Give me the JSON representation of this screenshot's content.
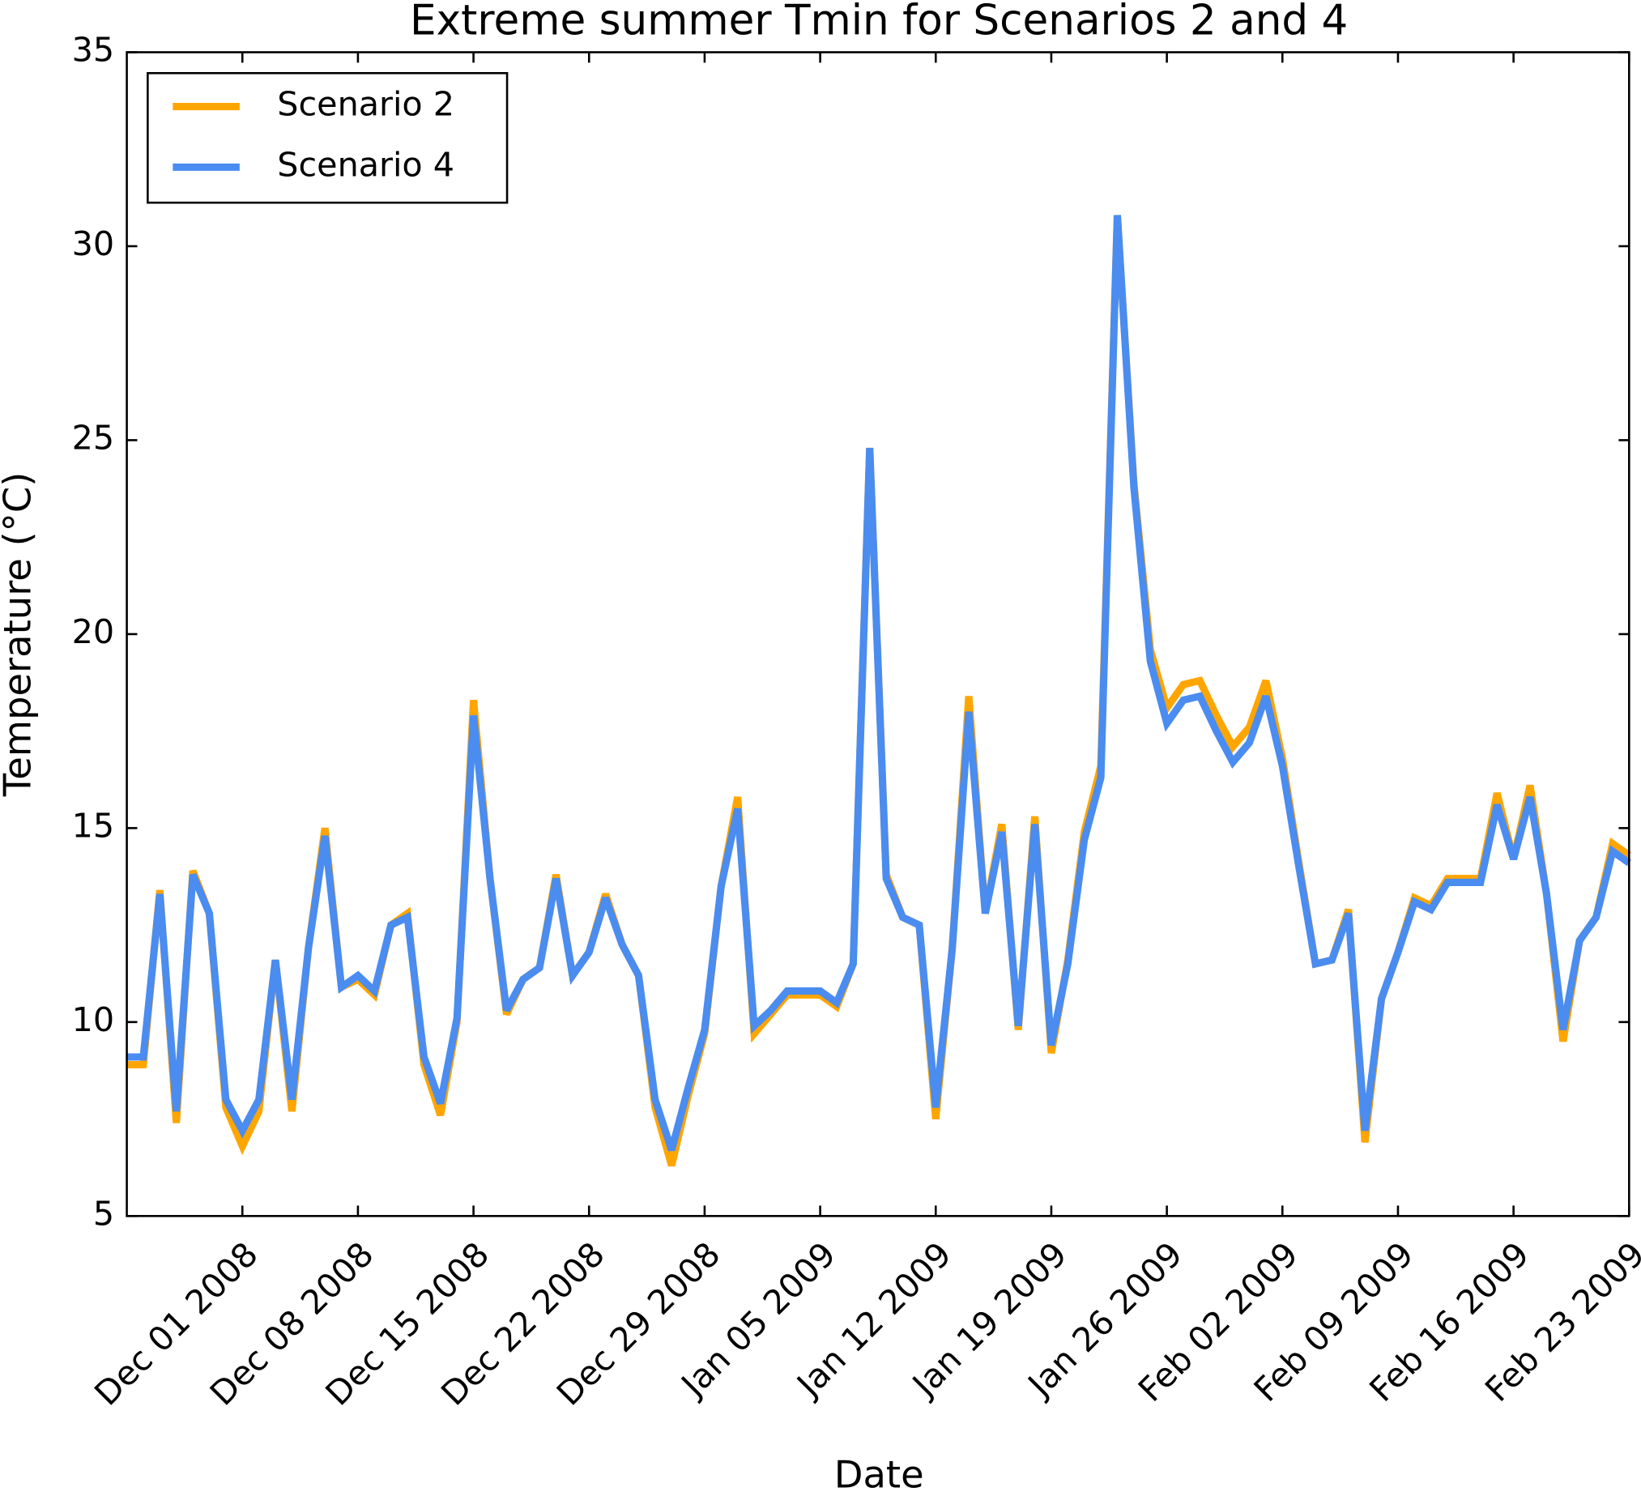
{
  "chart_data": {
    "type": "line",
    "title": "Extreme summer Tmin for Scenarios 2 and 4",
    "xlabel": "Date",
    "ylabel": "Temperature (°C)",
    "x": [
      "2008-11-24",
      "2008-11-25",
      "2008-11-26",
      "2008-11-27",
      "2008-11-28",
      "2008-11-29",
      "2008-11-30",
      "2008-12-01",
      "2008-12-02",
      "2008-12-03",
      "2008-12-04",
      "2008-12-05",
      "2008-12-06",
      "2008-12-07",
      "2008-12-08",
      "2008-12-09",
      "2008-12-10",
      "2008-12-11",
      "2008-12-12",
      "2008-12-13",
      "2008-12-14",
      "2008-12-15",
      "2008-12-16",
      "2008-12-17",
      "2008-12-18",
      "2008-12-19",
      "2008-12-20",
      "2008-12-21",
      "2008-12-22",
      "2008-12-23",
      "2008-12-24",
      "2008-12-25",
      "2008-12-26",
      "2008-12-27",
      "2008-12-28",
      "2008-12-29",
      "2008-12-30",
      "2008-12-31",
      "2009-01-01",
      "2009-01-02",
      "2009-01-03",
      "2009-01-04",
      "2009-01-05",
      "2009-01-06",
      "2009-01-07",
      "2009-01-08",
      "2009-01-09",
      "2009-01-10",
      "2009-01-11",
      "2009-01-12",
      "2009-01-13",
      "2009-01-14",
      "2009-01-15",
      "2009-01-16",
      "2009-01-17",
      "2009-01-18",
      "2009-01-19",
      "2009-01-20",
      "2009-01-21",
      "2009-01-22",
      "2009-01-23",
      "2009-01-24",
      "2009-01-25",
      "2009-01-26",
      "2009-01-27",
      "2009-01-28",
      "2009-01-29",
      "2009-01-30",
      "2009-01-31",
      "2009-02-01",
      "2009-02-02",
      "2009-02-03",
      "2009-02-04",
      "2009-02-05",
      "2009-02-06",
      "2009-02-07",
      "2009-02-08",
      "2009-02-09",
      "2009-02-10",
      "2009-02-11",
      "2009-02-12",
      "2009-02-13",
      "2009-02-14",
      "2009-02-15",
      "2009-02-16",
      "2009-02-17",
      "2009-02-18",
      "2009-02-19",
      "2009-02-20",
      "2009-02-21",
      "2009-02-22",
      "2009-02-23"
    ],
    "series": [
      {
        "name": "Scenario 2",
        "color": "#ffa500",
        "values": [
          8.9,
          8.9,
          13.4,
          7.4,
          13.9,
          12.8,
          7.8,
          6.8,
          7.7,
          11.6,
          7.7,
          11.9,
          15.0,
          10.9,
          11.1,
          10.7,
          12.5,
          12.8,
          8.9,
          7.6,
          10.0,
          18.3,
          13.7,
          10.2,
          11.1,
          11.4,
          13.8,
          11.2,
          11.8,
          13.3,
          12.0,
          11.2,
          7.8,
          6.3,
          8.1,
          9.7,
          13.5,
          15.8,
          9.7,
          10.2,
          10.7,
          10.7,
          10.7,
          10.4,
          11.5,
          24.8,
          13.8,
          12.7,
          12.5,
          7.5,
          11.9,
          18.4,
          12.8,
          15.1,
          9.8,
          15.3,
          9.2,
          11.6,
          14.9,
          16.6,
          30.8,
          23.9,
          19.6,
          18.1,
          18.7,
          18.8,
          17.9,
          17.1,
          17.6,
          18.8,
          16.8,
          14.1,
          11.5,
          11.6,
          12.9,
          6.9,
          10.6,
          11.8,
          13.2,
          13.0,
          13.7,
          13.7,
          13.7,
          15.9,
          14.2,
          16.1,
          13.3,
          9.5,
          12.1,
          12.7,
          14.6,
          14.3
        ]
      },
      {
        "name": "Scenario 4",
        "color": "#4a8cf0",
        "values": [
          9.1,
          9.1,
          13.3,
          7.7,
          13.8,
          12.8,
          8.0,
          7.2,
          8.0,
          11.6,
          8.0,
          11.9,
          14.8,
          10.9,
          11.2,
          10.8,
          12.5,
          12.7,
          9.1,
          7.9,
          10.1,
          17.9,
          13.7,
          10.3,
          11.1,
          11.4,
          13.7,
          11.2,
          11.8,
          13.2,
          12.0,
          11.2,
          8.0,
          6.7,
          8.3,
          9.8,
          13.5,
          15.5,
          9.9,
          10.3,
          10.8,
          10.8,
          10.8,
          10.5,
          11.5,
          24.8,
          13.7,
          12.7,
          12.5,
          7.8,
          11.9,
          18.0,
          12.8,
          14.9,
          9.9,
          15.1,
          9.4,
          11.5,
          14.7,
          16.3,
          30.8,
          23.8,
          19.3,
          17.7,
          18.3,
          18.4,
          17.5,
          16.7,
          17.2,
          18.4,
          16.6,
          14.0,
          11.5,
          11.6,
          12.8,
          7.2,
          10.6,
          11.8,
          13.1,
          12.9,
          13.6,
          13.6,
          13.6,
          15.6,
          14.2,
          15.8,
          13.3,
          9.8,
          12.1,
          12.7,
          14.4,
          14.1
        ]
      }
    ],
    "xlim": [
      "2008-11-24",
      "2009-02-23"
    ],
    "xticks": [
      {
        "value": "2008-12-01",
        "label": "Dec 01 2008"
      },
      {
        "value": "2008-12-08",
        "label": "Dec 08 2008"
      },
      {
        "value": "2008-12-15",
        "label": "Dec 15 2008"
      },
      {
        "value": "2008-12-22",
        "label": "Dec 22 2008"
      },
      {
        "value": "2008-12-29",
        "label": "Dec 29 2008"
      },
      {
        "value": "2009-01-05",
        "label": "Jan 05 2009"
      },
      {
        "value": "2009-01-12",
        "label": "Jan 12 2009"
      },
      {
        "value": "2009-01-19",
        "label": "Jan 19 2009"
      },
      {
        "value": "2009-01-26",
        "label": "Jan 26 2009"
      },
      {
        "value": "2009-02-02",
        "label": "Feb 02 2009"
      },
      {
        "value": "2009-02-09",
        "label": "Feb 09 2009"
      },
      {
        "value": "2009-02-16",
        "label": "Feb 16 2009"
      },
      {
        "value": "2009-02-23",
        "label": "Feb 23 2009"
      }
    ],
    "ylim": [
      5,
      35
    ],
    "yticks": [
      5,
      10,
      15,
      20,
      25,
      30,
      35
    ],
    "legend": "upper left",
    "grid": false
  }
}
